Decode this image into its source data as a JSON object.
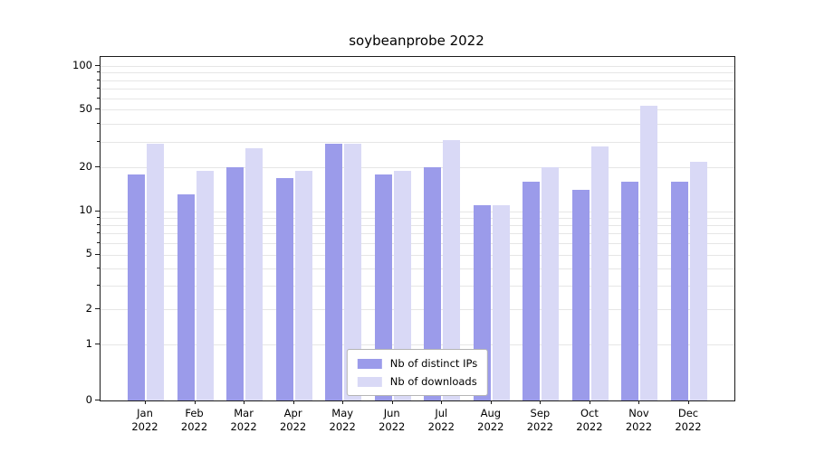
{
  "chart_data": {
    "type": "bar",
    "title": "soybeanprobe 2022",
    "xlabel": "",
    "ylabel": "",
    "yscale": "symlog",
    "yticks": [
      0,
      1,
      2,
      5,
      10,
      20,
      50,
      100
    ],
    "ylim": [
      0,
      115
    ],
    "grid": true,
    "legend_position": "lower center",
    "categories": [
      "Jan 2022",
      "Feb 2022",
      "Mar 2022",
      "Apr 2022",
      "May 2022",
      "Jun 2022",
      "Jul 2022",
      "Aug 2022",
      "Sep 2022",
      "Oct 2022",
      "Nov 2022",
      "Dec 2022"
    ],
    "series": [
      {
        "name": "Nb of distinct IPs",
        "color": "#9b9bea",
        "values": [
          18,
          13,
          20,
          17,
          29,
          18,
          20,
          11,
          16,
          14,
          16,
          16
        ]
      },
      {
        "name": "Nb of downloads",
        "color": "#d9d9f6",
        "values": [
          29,
          19,
          27,
          19,
          29,
          19,
          31,
          11,
          20,
          28,
          53,
          22
        ]
      }
    ]
  }
}
